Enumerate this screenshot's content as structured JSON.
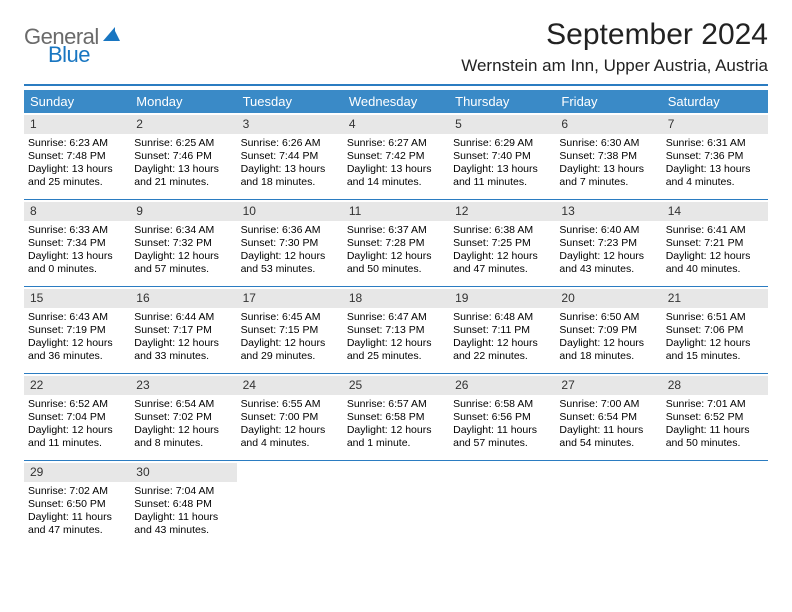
{
  "logo": {
    "part1": "General",
    "part2": "Blue"
  },
  "title": "September 2024",
  "location": "Wernstein am Inn, Upper Austria, Austria",
  "colors": {
    "header_bg": "#3a8ac7",
    "rule": "#2b7cc1",
    "shade": "#e7e7e7",
    "logo_gray": "#6a6a6a",
    "logo_blue": "#1976c1"
  },
  "day_headers": [
    "Sunday",
    "Monday",
    "Tuesday",
    "Wednesday",
    "Thursday",
    "Friday",
    "Saturday"
  ],
  "weeks": [
    [
      {
        "n": "1",
        "sr": "Sunrise: 6:23 AM",
        "ss": "Sunset: 7:48 PM",
        "d1": "Daylight: 13 hours",
        "d2": "and 25 minutes."
      },
      {
        "n": "2",
        "sr": "Sunrise: 6:25 AM",
        "ss": "Sunset: 7:46 PM",
        "d1": "Daylight: 13 hours",
        "d2": "and 21 minutes."
      },
      {
        "n": "3",
        "sr": "Sunrise: 6:26 AM",
        "ss": "Sunset: 7:44 PM",
        "d1": "Daylight: 13 hours",
        "d2": "and 18 minutes."
      },
      {
        "n": "4",
        "sr": "Sunrise: 6:27 AM",
        "ss": "Sunset: 7:42 PM",
        "d1": "Daylight: 13 hours",
        "d2": "and 14 minutes."
      },
      {
        "n": "5",
        "sr": "Sunrise: 6:29 AM",
        "ss": "Sunset: 7:40 PM",
        "d1": "Daylight: 13 hours",
        "d2": "and 11 minutes."
      },
      {
        "n": "6",
        "sr": "Sunrise: 6:30 AM",
        "ss": "Sunset: 7:38 PM",
        "d1": "Daylight: 13 hours",
        "d2": "and 7 minutes."
      },
      {
        "n": "7",
        "sr": "Sunrise: 6:31 AM",
        "ss": "Sunset: 7:36 PM",
        "d1": "Daylight: 13 hours",
        "d2": "and 4 minutes."
      }
    ],
    [
      {
        "n": "8",
        "sr": "Sunrise: 6:33 AM",
        "ss": "Sunset: 7:34 PM",
        "d1": "Daylight: 13 hours",
        "d2": "and 0 minutes."
      },
      {
        "n": "9",
        "sr": "Sunrise: 6:34 AM",
        "ss": "Sunset: 7:32 PM",
        "d1": "Daylight: 12 hours",
        "d2": "and 57 minutes."
      },
      {
        "n": "10",
        "sr": "Sunrise: 6:36 AM",
        "ss": "Sunset: 7:30 PM",
        "d1": "Daylight: 12 hours",
        "d2": "and 53 minutes."
      },
      {
        "n": "11",
        "sr": "Sunrise: 6:37 AM",
        "ss": "Sunset: 7:28 PM",
        "d1": "Daylight: 12 hours",
        "d2": "and 50 minutes."
      },
      {
        "n": "12",
        "sr": "Sunrise: 6:38 AM",
        "ss": "Sunset: 7:25 PM",
        "d1": "Daylight: 12 hours",
        "d2": "and 47 minutes."
      },
      {
        "n": "13",
        "sr": "Sunrise: 6:40 AM",
        "ss": "Sunset: 7:23 PM",
        "d1": "Daylight: 12 hours",
        "d2": "and 43 minutes."
      },
      {
        "n": "14",
        "sr": "Sunrise: 6:41 AM",
        "ss": "Sunset: 7:21 PM",
        "d1": "Daylight: 12 hours",
        "d2": "and 40 minutes."
      }
    ],
    [
      {
        "n": "15",
        "sr": "Sunrise: 6:43 AM",
        "ss": "Sunset: 7:19 PM",
        "d1": "Daylight: 12 hours",
        "d2": "and 36 minutes."
      },
      {
        "n": "16",
        "sr": "Sunrise: 6:44 AM",
        "ss": "Sunset: 7:17 PM",
        "d1": "Daylight: 12 hours",
        "d2": "and 33 minutes."
      },
      {
        "n": "17",
        "sr": "Sunrise: 6:45 AM",
        "ss": "Sunset: 7:15 PM",
        "d1": "Daylight: 12 hours",
        "d2": "and 29 minutes."
      },
      {
        "n": "18",
        "sr": "Sunrise: 6:47 AM",
        "ss": "Sunset: 7:13 PM",
        "d1": "Daylight: 12 hours",
        "d2": "and 25 minutes."
      },
      {
        "n": "19",
        "sr": "Sunrise: 6:48 AM",
        "ss": "Sunset: 7:11 PM",
        "d1": "Daylight: 12 hours",
        "d2": "and 22 minutes."
      },
      {
        "n": "20",
        "sr": "Sunrise: 6:50 AM",
        "ss": "Sunset: 7:09 PM",
        "d1": "Daylight: 12 hours",
        "d2": "and 18 minutes."
      },
      {
        "n": "21",
        "sr": "Sunrise: 6:51 AM",
        "ss": "Sunset: 7:06 PM",
        "d1": "Daylight: 12 hours",
        "d2": "and 15 minutes."
      }
    ],
    [
      {
        "n": "22",
        "sr": "Sunrise: 6:52 AM",
        "ss": "Sunset: 7:04 PM",
        "d1": "Daylight: 12 hours",
        "d2": "and 11 minutes."
      },
      {
        "n": "23",
        "sr": "Sunrise: 6:54 AM",
        "ss": "Sunset: 7:02 PM",
        "d1": "Daylight: 12 hours",
        "d2": "and 8 minutes."
      },
      {
        "n": "24",
        "sr": "Sunrise: 6:55 AM",
        "ss": "Sunset: 7:00 PM",
        "d1": "Daylight: 12 hours",
        "d2": "and 4 minutes."
      },
      {
        "n": "25",
        "sr": "Sunrise: 6:57 AM",
        "ss": "Sunset: 6:58 PM",
        "d1": "Daylight: 12 hours",
        "d2": "and 1 minute."
      },
      {
        "n": "26",
        "sr": "Sunrise: 6:58 AM",
        "ss": "Sunset: 6:56 PM",
        "d1": "Daylight: 11 hours",
        "d2": "and 57 minutes."
      },
      {
        "n": "27",
        "sr": "Sunrise: 7:00 AM",
        "ss": "Sunset: 6:54 PM",
        "d1": "Daylight: 11 hours",
        "d2": "and 54 minutes."
      },
      {
        "n": "28",
        "sr": "Sunrise: 7:01 AM",
        "ss": "Sunset: 6:52 PM",
        "d1": "Daylight: 11 hours",
        "d2": "and 50 minutes."
      }
    ],
    [
      {
        "n": "29",
        "sr": "Sunrise: 7:02 AM",
        "ss": "Sunset: 6:50 PM",
        "d1": "Daylight: 11 hours",
        "d2": "and 47 minutes."
      },
      {
        "n": "30",
        "sr": "Sunrise: 7:04 AM",
        "ss": "Sunset: 6:48 PM",
        "d1": "Daylight: 11 hours",
        "d2": "and 43 minutes."
      },
      {
        "empty": true
      },
      {
        "empty": true
      },
      {
        "empty": true
      },
      {
        "empty": true
      },
      {
        "empty": true
      }
    ]
  ]
}
